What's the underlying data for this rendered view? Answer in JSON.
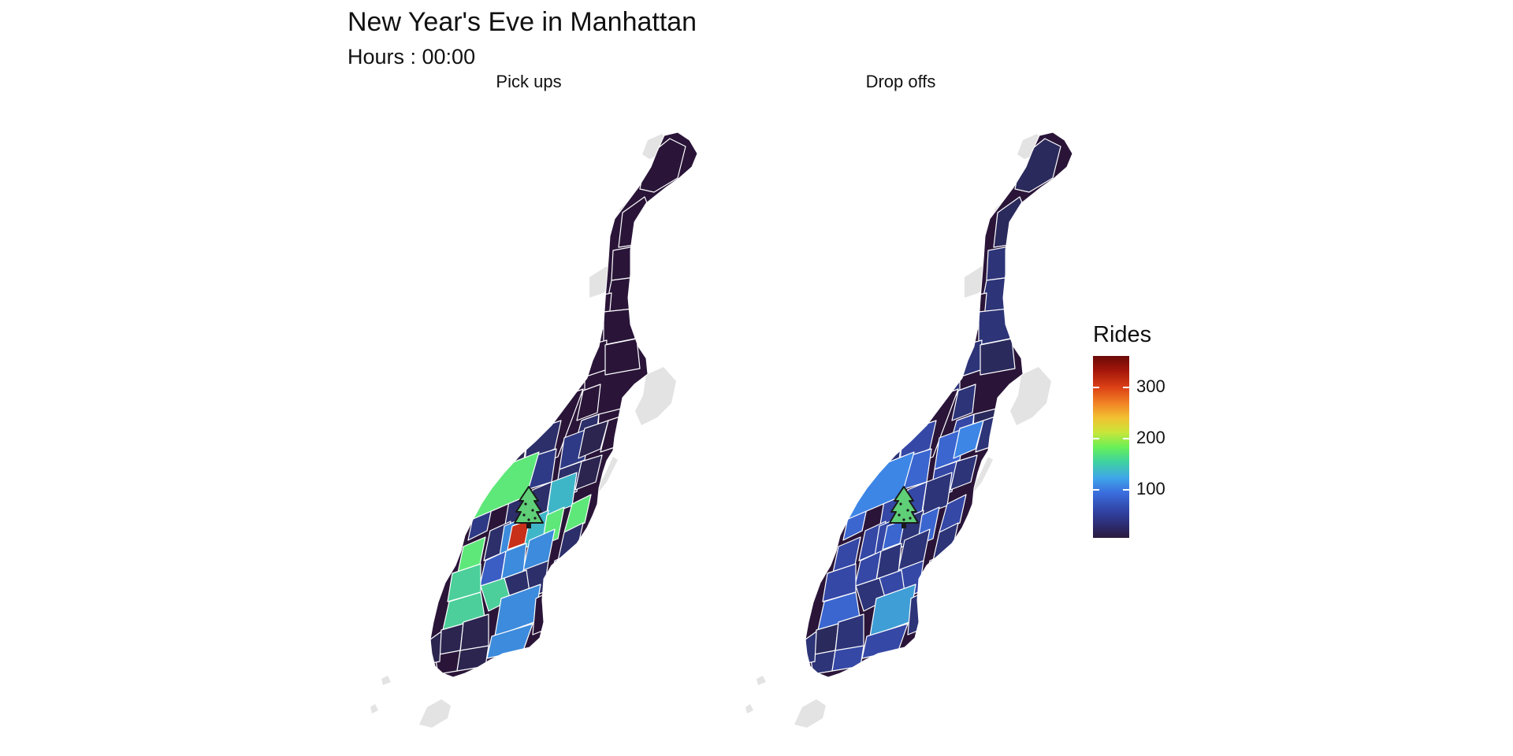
{
  "header": {
    "title": "New Year's Eve in Manhattan",
    "subtitle": "Hours : 00:00"
  },
  "panels": [
    {
      "id": "pickups",
      "label": "Pick ups"
    },
    {
      "id": "dropoffs",
      "label": "Drop offs"
    }
  ],
  "legend": {
    "title": "Rides",
    "ticks": [
      {
        "value": 300,
        "label": "300"
      },
      {
        "value": 200,
        "label": "200"
      },
      {
        "value": 100,
        "label": "100"
      }
    ],
    "range": [
      5,
      360
    ],
    "palette": [
      "#2b1a3c",
      "#3040a0",
      "#3b6fdf",
      "#3fa6ea",
      "#3fd39e",
      "#69f056",
      "#f2c131",
      "#f28325",
      "#db3f15",
      "#6b0a08"
    ]
  },
  "colors": {
    "no_data": "#e3e3e3",
    "zone_border": "#ffffff",
    "background": "#ffffff"
  },
  "markers": [
    {
      "panel": "pickups",
      "icon": "christmas-tree-icon"
    },
    {
      "panel": "dropoffs",
      "icon": "christmas-tree-icon"
    }
  ]
}
